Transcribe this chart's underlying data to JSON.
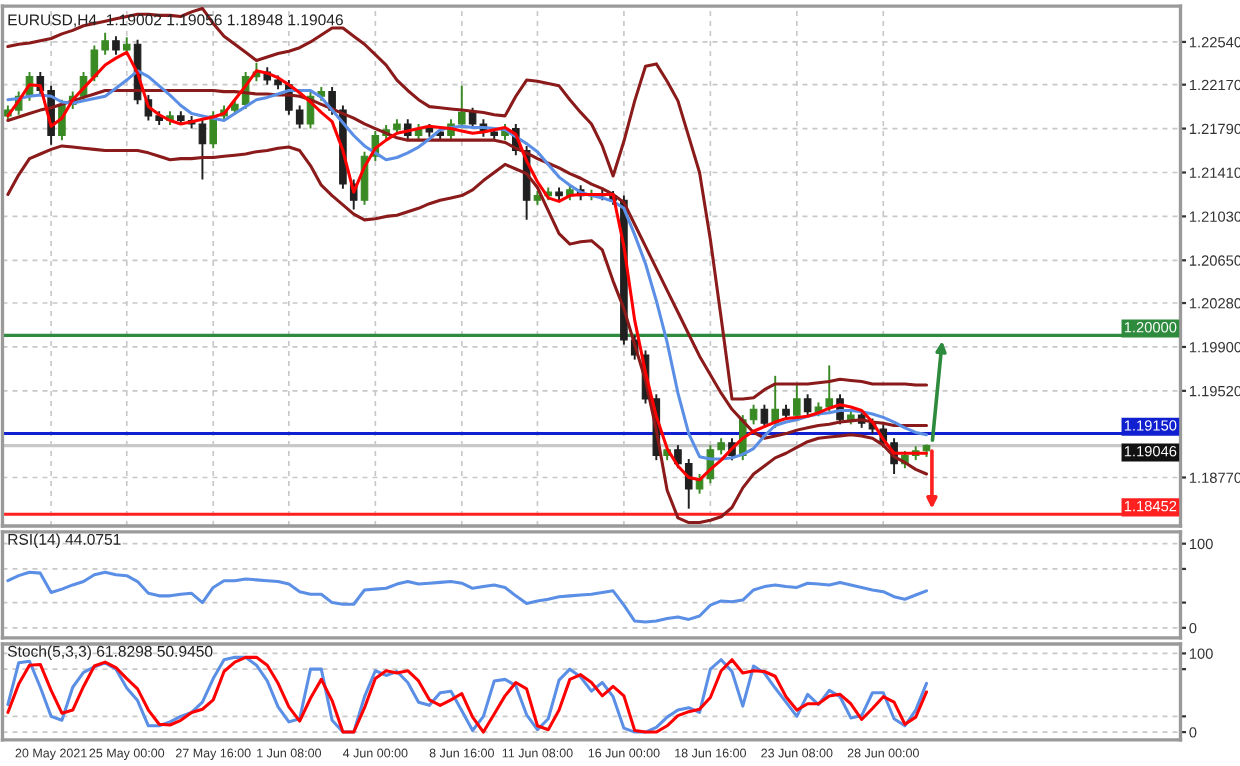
{
  "chart_data": [
    {
      "type": "candlestick",
      "title": "EURUSD,H4  1.19002 1.19056 1.18948 1.19046",
      "ohlc": [
        [
          1.219,
          1.2199,
          1.2186,
          1.2195
        ],
        [
          1.2195,
          1.2211,
          1.2191,
          1.2207
        ],
        [
          1.2207,
          1.2228,
          1.2203,
          1.2224
        ],
        [
          1.2224,
          1.2228,
          1.2208,
          1.2212
        ],
        [
          1.2212,
          1.2216,
          1.2165,
          1.2173
        ],
        [
          1.2173,
          1.2204,
          1.2169,
          1.22
        ],
        [
          1.22,
          1.2211,
          1.2196,
          1.2207
        ],
        [
          1.2207,
          1.2228,
          1.2203,
          1.2224
        ],
        [
          1.2224,
          1.2251,
          1.222,
          1.2247
        ],
        [
          1.2247,
          1.2262,
          1.2243,
          1.2255
        ],
        [
          1.2255,
          1.2259,
          1.2243,
          1.2247
        ],
        [
          1.2247,
          1.2258,
          1.2243,
          1.2252
        ],
        [
          1.2252,
          1.2256,
          1.22,
          1.2204
        ],
        [
          1.2204,
          1.2208,
          1.2186,
          1.219
        ],
        [
          1.219,
          1.2194,
          1.2182,
          1.2186
        ],
        [
          1.2186,
          1.2194,
          1.2182,
          1.219
        ],
        [
          1.219,
          1.2194,
          1.2182,
          1.2186
        ],
        [
          1.2186,
          1.219,
          1.2179,
          1.2183
        ],
        [
          1.2183,
          1.2187,
          1.2135,
          1.2166
        ],
        [
          1.2166,
          1.2194,
          1.2162,
          1.219
        ],
        [
          1.219,
          1.2199,
          1.2186,
          1.2195
        ],
        [
          1.2195,
          1.2204,
          1.2191,
          1.22
        ],
        [
          1.22,
          1.2228,
          1.2196,
          1.2224
        ],
        [
          1.2224,
          1.2236,
          1.222,
          1.2228
        ],
        [
          1.2228,
          1.2232,
          1.2217,
          1.2221
        ],
        [
          1.2221,
          1.2225,
          1.2213,
          1.2217
        ],
        [
          1.2217,
          1.2221,
          1.2191,
          1.2195
        ],
        [
          1.2195,
          1.2199,
          1.2179,
          1.2183
        ],
        [
          1.2183,
          1.2211,
          1.2179,
          1.2207
        ],
        [
          1.2207,
          1.2215,
          1.2203,
          1.2211
        ],
        [
          1.2211,
          1.2215,
          1.2191,
          1.2195
        ],
        [
          1.2195,
          1.2199,
          1.2127,
          1.2131
        ],
        [
          1.2131,
          1.2135,
          1.2109,
          1.2117
        ],
        [
          1.2117,
          1.2159,
          1.2113,
          1.2155
        ],
        [
          1.2155,
          1.2177,
          1.2151,
          1.2173
        ],
        [
          1.2173,
          1.2182,
          1.2169,
          1.2178
        ],
        [
          1.2178,
          1.2187,
          1.2174,
          1.2183
        ],
        [
          1.2183,
          1.2187,
          1.2169,
          1.2173
        ],
        [
          1.2173,
          1.2183,
          1.2169,
          1.2179
        ],
        [
          1.2179,
          1.2183,
          1.2172,
          1.2176
        ],
        [
          1.2176,
          1.218,
          1.2169,
          1.2173
        ],
        [
          1.2173,
          1.2187,
          1.2169,
          1.2183
        ],
        [
          1.2183,
          1.2216,
          1.2179,
          1.2193
        ],
        [
          1.2193,
          1.2197,
          1.2179,
          1.2183
        ],
        [
          1.2183,
          1.2187,
          1.2172,
          1.2176
        ],
        [
          1.2176,
          1.218,
          1.2169,
          1.2173
        ],
        [
          1.2173,
          1.2183,
          1.2169,
          1.2179
        ],
        [
          1.2179,
          1.2183,
          1.2156,
          1.216
        ],
        [
          1.216,
          1.2164,
          1.21,
          1.2117
        ],
        [
          1.2117,
          1.2125,
          1.2113,
          1.2121
        ],
        [
          1.2121,
          1.2128,
          1.2117,
          1.2124
        ],
        [
          1.2124,
          1.2128,
          1.2117,
          1.2121
        ],
        [
          1.2121,
          1.213,
          1.2117,
          1.2126
        ],
        [
          1.2126,
          1.213,
          1.2117,
          1.2121
        ],
        [
          1.2121,
          1.2126,
          1.2117,
          1.2122
        ],
        [
          1.2122,
          1.2126,
          1.2117,
          1.2121
        ],
        [
          1.2121,
          1.2125,
          1.2113,
          1.2117
        ],
        [
          1.2117,
          1.2121,
          1.1992,
          1.1996
        ],
        [
          1.1996,
          1.2,
          1.1979,
          1.1983
        ],
        [
          1.1983,
          1.1987,
          1.1941,
          1.1945
        ],
        [
          1.1945,
          1.1949,
          1.1892,
          1.1896
        ],
        [
          1.1896,
          1.1905,
          1.1892,
          1.1901
        ],
        [
          1.1901,
          1.1905,
          1.1885,
          1.1889
        ],
        [
          1.1889,
          1.1893,
          1.185,
          1.1867
        ],
        [
          1.1867,
          1.188,
          1.1863,
          1.1876
        ],
        [
          1.1876,
          1.1905,
          1.1872,
          1.1901
        ],
        [
          1.1901,
          1.1911,
          1.1897,
          1.1907
        ],
        [
          1.1907,
          1.1911,
          1.1892,
          1.1896
        ],
        [
          1.1896,
          1.1931,
          1.1892,
          1.1927
        ],
        [
          1.1927,
          1.194,
          1.1923,
          1.1936
        ],
        [
          1.1936,
          1.194,
          1.192,
          1.1924
        ],
        [
          1.1924,
          1.1965,
          1.192,
          1.1936
        ],
        [
          1.1936,
          1.194,
          1.1927,
          1.1931
        ],
        [
          1.1931,
          1.1957,
          1.1927,
          1.1945
        ],
        [
          1.1945,
          1.1949,
          1.193,
          1.1934
        ],
        [
          1.1934,
          1.1942,
          1.193,
          1.1938
        ],
        [
          1.1938,
          1.1974,
          1.1934,
          1.1945
        ],
        [
          1.1945,
          1.1949,
          1.1923,
          1.1927
        ],
        [
          1.1927,
          1.1935,
          1.1923,
          1.1931
        ],
        [
          1.1931,
          1.1935,
          1.192,
          1.1924
        ],
        [
          1.1924,
          1.1928,
          1.1915,
          1.1919
        ],
        [
          1.1919,
          1.1923,
          1.1903,
          1.1907
        ],
        [
          1.1907,
          1.1911,
          1.188,
          1.1889
        ],
        [
          1.1889,
          1.19,
          1.1885,
          1.1896
        ],
        [
          1.1896,
          1.1904,
          1.1892,
          1.19
        ],
        [
          1.19002,
          1.19056,
          1.18948,
          1.19046
        ],
        null,
        null,
        null,
        null,
        null,
        null,
        null,
        null,
        null,
        null,
        null,
        null,
        null,
        null,
        null,
        null,
        null,
        null,
        null,
        null,
        null,
        null,
        null
      ],
      "series": [
        {
          "type": "line",
          "color": "#8b1a1a",
          "values": [
            1.225,
            1.2252,
            1.2253,
            1.2255,
            1.2257,
            1.2261,
            1.2264,
            1.2268,
            1.227,
            1.2272,
            1.2274,
            1.2276,
            1.2278,
            1.2278,
            1.2277,
            1.2277,
            1.2276,
            1.228,
            1.2283,
            1.227,
            1.2259,
            1.2252,
            1.2245,
            1.2238,
            1.2241,
            1.2244,
            1.2246,
            1.2249,
            1.2254,
            1.226,
            1.2266,
            1.2266,
            1.2259,
            1.2252,
            1.2243,
            1.2234,
            1.2221,
            1.2212,
            1.2204,
            1.2198,
            1.2197,
            1.2196,
            1.2195,
            1.2194,
            1.2193,
            1.2191,
            1.219,
            1.2207,
            1.2221,
            1.222,
            1.2218,
            1.2216,
            1.2204,
            1.2193,
            1.2183,
            1.2164,
            1.2138,
            1.2168,
            1.2203,
            1.2233,
            1.2235,
            1.222,
            1.2203,
            1.2172,
            1.2141,
            1.2083,
            1.2015,
            1.1945,
            1.1945,
            1.1946,
            1.1953,
            1.1958,
            1.1958,
            1.1958,
            1.1958,
            1.1959,
            1.196,
            1.1962,
            1.1961,
            1.196,
            1.1958,
            1.1958,
            1.1958,
            1.1958,
            1.1957,
            1.1957,
            null,
            null,
            null,
            null,
            null,
            null,
            null,
            null,
            null,
            null,
            null,
            null,
            null,
            null,
            null,
            null,
            null,
            null,
            null,
            null,
            null,
            null,
            null
          ]
        },
        {
          "type": "line",
          "color": "#8b1a1a",
          "values": [
            1.2186,
            1.2189,
            1.2192,
            1.2195,
            1.2197,
            1.22,
            1.2203,
            1.2206,
            1.2209,
            1.2212,
            1.2212,
            1.2212,
            1.2212,
            1.2212,
            1.2212,
            1.2212,
            1.2212,
            1.2212,
            1.2212,
            1.2212,
            1.2211,
            1.2211,
            1.221,
            1.2209,
            1.2209,
            1.2208,
            1.2208,
            1.2207,
            1.2204,
            1.22,
            1.2196,
            1.2192,
            1.2188,
            1.2183,
            1.2179,
            1.2175,
            1.2171,
            1.2169,
            1.2169,
            1.2169,
            1.2169,
            1.2169,
            1.2169,
            1.2169,
            1.2169,
            1.2169,
            1.2167,
            1.2162,
            1.2158,
            1.2153,
            1.2149,
            1.2145,
            1.214,
            1.2136,
            1.2131,
            1.2127,
            1.2122,
            1.2115,
            1.2096,
            1.2077,
            1.2058,
            1.2039,
            1.202,
            1.2001,
            1.1982,
            1.1966,
            1.195,
            1.1936,
            1.1926,
            1.1916,
            1.1911,
            1.1913,
            1.1915,
            1.1918,
            1.192,
            1.1922,
            1.1923,
            1.1925,
            1.1926,
            1.1927,
            1.1925,
            1.1924,
            1.1922,
            1.1922,
            1.1922,
            1.1922,
            null,
            null,
            null,
            null,
            null,
            null,
            null,
            null,
            null,
            null,
            null,
            null,
            null,
            null,
            null,
            null,
            null,
            null,
            null,
            null,
            null,
            null,
            null
          ]
        },
        {
          "type": "line",
          "color": "#8b1a1a",
          "values": [
            1.2122,
            1.2139,
            1.2153,
            1.2157,
            1.2161,
            1.2164,
            1.2163,
            1.2162,
            1.2161,
            1.216,
            1.216,
            1.216,
            1.216,
            1.2158,
            1.2155,
            1.2152,
            1.2153,
            1.2153,
            1.2154,
            1.2154,
            1.2155,
            1.2156,
            1.2157,
            1.2159,
            1.216,
            1.2162,
            1.2163,
            1.216,
            1.2147,
            1.213,
            1.2121,
            1.2113,
            1.2105,
            1.21,
            1.2101,
            1.2103,
            1.2104,
            1.2107,
            1.211,
            1.2114,
            1.2117,
            1.2119,
            1.2121,
            1.2126,
            1.2134,
            1.2141,
            1.2148,
            1.2144,
            1.214,
            1.2128,
            1.2108,
            1.2088,
            1.2079,
            1.2081,
            1.2082,
            1.2074,
            1.2047,
            1.2023,
            1.1992,
            1.1961,
            1.1918,
            1.1866,
            1.1842,
            1.1838,
            1.1838,
            1.184,
            1.1843,
            1.1851,
            1.1868,
            1.188,
            1.1887,
            1.1894,
            1.1898,
            1.1903,
            1.1908,
            1.1911,
            1.1912,
            1.1913,
            1.1914,
            1.1913,
            1.1911,
            1.1905,
            1.1895,
            1.189,
            1.1884,
            1.188,
            null,
            null,
            null,
            null,
            null,
            null,
            null,
            null,
            null,
            null,
            null,
            null,
            null,
            null,
            null,
            null,
            null,
            null,
            null,
            null,
            null,
            null,
            null
          ]
        },
        {
          "type": "line",
          "color": "#5b8fe6",
          "values": [
            1.2204,
            1.2205,
            1.2207,
            1.2208,
            1.2207,
            1.2202,
            1.2201,
            1.2203,
            1.2205,
            1.2207,
            1.2214,
            1.2221,
            1.2229,
            1.2224,
            1.2216,
            1.2208,
            1.2199,
            1.2192,
            1.219,
            1.2188,
            1.2186,
            1.2192,
            1.2198,
            1.2204,
            1.2206,
            1.2209,
            1.2212,
            1.2212,
            1.2212,
            1.2206,
            1.2195,
            1.2184,
            1.2173,
            1.2164,
            1.2158,
            1.2152,
            1.2154,
            1.2158,
            1.2163,
            1.217,
            1.2178,
            1.218,
            1.2181,
            1.218,
            1.218,
            1.2179,
            1.2178,
            1.2172,
            1.2166,
            1.2159,
            1.2148,
            1.2137,
            1.213,
            1.2124,
            1.2121,
            1.2119,
            1.2116,
            1.211,
            1.2087,
            1.2062,
            1.203,
            1.1994,
            1.195,
            1.1915,
            1.1895,
            1.1893,
            1.1893,
            1.1894,
            1.1897,
            1.1902,
            1.1913,
            1.1922,
            1.1925,
            1.1927,
            1.193,
            1.1932,
            1.1933,
            1.1935,
            1.1935,
            1.1934,
            1.1932,
            1.1929,
            1.1925,
            1.192,
            1.1916,
            1.1914,
            null,
            null,
            null,
            null,
            null,
            null,
            null,
            null,
            null,
            null,
            null,
            null,
            null,
            null,
            null,
            null,
            null,
            null,
            null,
            null,
            null,
            null,
            null
          ]
        },
        {
          "type": "line",
          "color": "#ff0000",
          "values": [
            1.219,
            1.2203,
            1.2217,
            1.2216,
            1.2181,
            1.2188,
            1.2204,
            1.2214,
            1.2224,
            1.2234,
            1.224,
            1.2245,
            1.2227,
            1.2198,
            1.2191,
            1.2186,
            1.2183,
            1.2185,
            1.2187,
            1.2189,
            1.2192,
            1.2204,
            1.2216,
            1.2229,
            1.2227,
            1.2223,
            1.2217,
            1.221,
            1.2202,
            1.2193,
            1.2185,
            1.216,
            1.2124,
            1.2146,
            1.2162,
            1.2169,
            1.2175,
            1.2177,
            1.2179,
            1.2181,
            1.218,
            1.2179,
            1.2177,
            1.2175,
            1.2176,
            1.2178,
            1.218,
            1.2174,
            1.2151,
            1.2133,
            1.2119,
            1.2116,
            1.2121,
            1.2122,
            1.2122,
            1.2122,
            1.2122,
            1.2077,
            1.2013,
            1.1968,
            1.193,
            1.1902,
            1.1887,
            1.1877,
            1.1875,
            1.1884,
            1.1892,
            1.1902,
            1.1911,
            1.1917,
            1.1921,
            1.1925,
            1.1928,
            1.1929,
            1.193,
            1.1933,
            1.1937,
            1.194,
            1.1938,
            1.1935,
            1.1925,
            1.191,
            1.1898,
            1.1898,
            1.1898,
            1.1898,
            null,
            null,
            null,
            null,
            null,
            null,
            null,
            null,
            null,
            null,
            null,
            null,
            null,
            null,
            null,
            null,
            null,
            null,
            null,
            null,
            null,
            null,
            null
          ]
        }
      ],
      "ref_lines": [
        {
          "axis": "y",
          "value": 1.2,
          "label": "1.20000",
          "color": "#2e8b3e"
        },
        {
          "axis": "y",
          "value": 1.1915,
          "label": "1.19150",
          "color": "#1020d0"
        },
        {
          "axis": "y",
          "value": 1.19046,
          "label": "1.19046",
          "color": "#c8c8c8"
        },
        {
          "axis": "y",
          "value": 1.18452,
          "label": "1.18452",
          "color": "#ff2020"
        }
      ],
      "ylim": [
        1.1835,
        1.2285
      ],
      "yticks": [
        {
          "value": 1.2254,
          "label": "1.22540"
        },
        {
          "value": 1.2217,
          "label": "1.22170"
        },
        {
          "value": 1.2179,
          "label": "1.21790"
        },
        {
          "value": 1.2141,
          "label": "1.21410"
        },
        {
          "value": 1.2103,
          "label": "1.21030"
        },
        {
          "value": 1.2065,
          "label": "1.20650"
        },
        {
          "value": 1.2028,
          "label": "1.20280"
        },
        {
          "value": 1.199,
          "label": "1.19900"
        },
        {
          "value": 1.1952,
          "label": "1.19520"
        },
        {
          "value": 1.1877,
          "label": "1.18770"
        }
      ],
      "grid": true,
      "tick_labels": "y"
    },
    {
      "type": "line",
      "title": "RSI(14) 44.0751",
      "series": [
        {
          "type": "line",
          "color": "#5b8fe6",
          "values": [
            56,
            62,
            66,
            65,
            42,
            46,
            51,
            55,
            63,
            66,
            63,
            62,
            55,
            41,
            38,
            38,
            40,
            41,
            30,
            48,
            56,
            56,
            58,
            57,
            56,
            55,
            52,
            43,
            40,
            40,
            30,
            28,
            28,
            45,
            46,
            47,
            52,
            55,
            52,
            53,
            54,
            55,
            53,
            47,
            49,
            51,
            48,
            38,
            29,
            32,
            34,
            37,
            38,
            39,
            40,
            42,
            44,
            27,
            8,
            7,
            8,
            11,
            13,
            10,
            14,
            27,
            32,
            31,
            33,
            45,
            49,
            51,
            49,
            48,
            53,
            52,
            51,
            54,
            51,
            48,
            45,
            43,
            37,
            34,
            39,
            44,
            null,
            null,
            null,
            null,
            null,
            null,
            null,
            null,
            null,
            null,
            null,
            null,
            null,
            null,
            null,
            null,
            null,
            null,
            null,
            null,
            null,
            null,
            null
          ]
        }
      ],
      "ylim": [
        -12,
        114
      ],
      "yticks": [
        100,
        {
          "value": 70,
          "label": null
        },
        {
          "value": 30,
          "label": null
        },
        0
      ],
      "grid": "y",
      "tick_labels": "y"
    },
    {
      "type": "line",
      "title": "Stoch(5,3,3) 61.8298 50.9450",
      "categories": [
        null,
        null,
        null,
        null,
        "20 May 2021",
        null,
        null,
        null,
        null,
        null,
        null,
        "25 May 00:00",
        null,
        null,
        null,
        null,
        null,
        null,
        null,
        "27 May 16:00",
        null,
        null,
        null,
        null,
        null,
        null,
        "1 Jun 08:00",
        null,
        null,
        null,
        null,
        null,
        null,
        null,
        "4 Jun 00:00",
        null,
        null,
        null,
        null,
        null,
        null,
        null,
        "8 Jun 16:00",
        null,
        null,
        null,
        null,
        null,
        null,
        "11 Jun 08:00",
        null,
        null,
        null,
        null,
        null,
        null,
        null,
        "16 Jun 00:00",
        null,
        null,
        null,
        null,
        null,
        null,
        null,
        "18 Jun 16:00",
        null,
        null,
        null,
        null,
        null,
        null,
        null,
        "23 Jun 08:00",
        null,
        null,
        null,
        null,
        null,
        null,
        null,
        "28 Jun 00:00",
        null,
        null,
        null,
        null,
        null,
        null,
        null,
        null,
        null,
        null,
        null,
        null,
        null,
        null,
        null,
        null,
        null,
        null,
        null,
        null,
        null,
        null,
        null,
        null,
        null,
        null,
        null
      ],
      "series": [
        {
          "type": "line",
          "color": "#5b8fe6",
          "values": [
            35,
            88,
            90,
            57,
            20,
            15,
            57,
            76,
            83,
            88,
            80,
            56,
            40,
            8,
            8,
            13,
            20,
            25,
            38,
            68,
            92,
            95,
            95,
            85,
            65,
            32,
            13,
            17,
            80,
            80,
            15,
            0,
            0,
            45,
            78,
            72,
            77,
            63,
            38,
            34,
            50,
            52,
            27,
            2,
            20,
            65,
            67,
            59,
            22,
            3,
            17,
            66,
            80,
            70,
            52,
            63,
            45,
            5,
            0,
            0,
            6,
            19,
            28,
            31,
            25,
            80,
            92,
            77,
            33,
            84,
            75,
            56,
            38,
            20,
            48,
            35,
            53,
            45,
            18,
            21,
            50,
            50,
            17,
            8,
            28,
            62,
            null,
            null,
            null,
            null,
            null,
            null,
            null,
            null,
            null,
            null,
            null,
            null,
            null,
            null,
            null,
            null,
            null,
            null,
            null,
            null,
            null,
            null,
            null
          ]
        },
        {
          "type": "line",
          "color": "#ff0000",
          "values": [
            25,
            61,
            85,
            86,
            53,
            24,
            28,
            58,
            84,
            89,
            82,
            68,
            55,
            28,
            10,
            9,
            15,
            25,
            29,
            41,
            77,
            89,
            95,
            95,
            85,
            62,
            32,
            14,
            43,
            67,
            40,
            0,
            0,
            31,
            68,
            78,
            75,
            78,
            65,
            41,
            34,
            41,
            49,
            19,
            0,
            23,
            46,
            63,
            55,
            8,
            3,
            28,
            67,
            73,
            63,
            46,
            58,
            46,
            2,
            0,
            0,
            8,
            21,
            26,
            29,
            44,
            78,
            92,
            75,
            78,
            77,
            71,
            45,
            28,
            36,
            36,
            46,
            48,
            36,
            16,
            30,
            45,
            38,
            10,
            19,
            51,
            null,
            null,
            null,
            null,
            null,
            null,
            null,
            null,
            null,
            null,
            null,
            null,
            null,
            null,
            null,
            null,
            null,
            null,
            null,
            null,
            null,
            null,
            null
          ]
        }
      ],
      "ylim": [
        -10,
        112
      ],
      "yticks": [
        100,
        {
          "value": 80,
          "label": null
        },
        {
          "value": 20,
          "label": null
        },
        0
      ],
      "grid": "y"
    }
  ]
}
